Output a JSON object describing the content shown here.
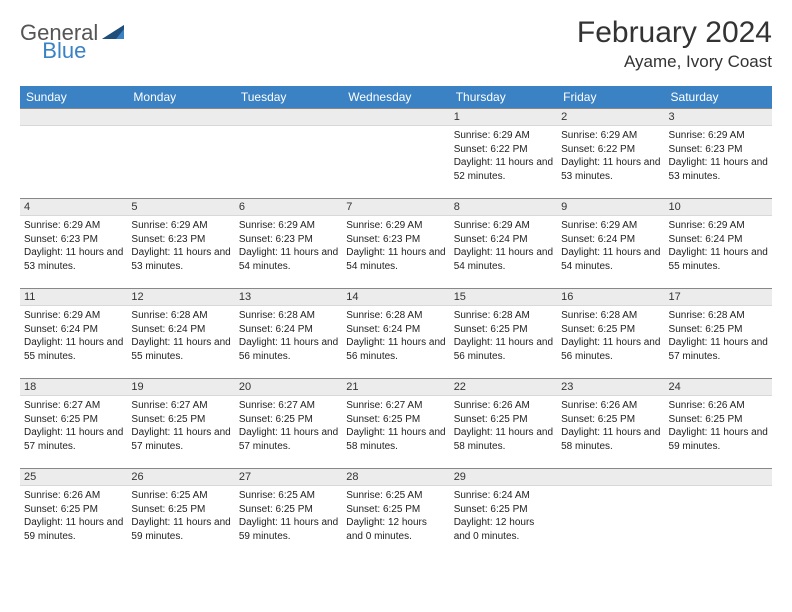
{
  "logo": {
    "general": "General",
    "blue": "Blue"
  },
  "header": {
    "month": "February 2024",
    "location": "Ayame, Ivory Coast"
  },
  "colors": {
    "header_bg": "#3b82c4",
    "header_text": "#ffffff",
    "daynum_bg": "#ececec",
    "daynum_border_top": "#888888",
    "text": "#333333"
  },
  "daynames": [
    "Sunday",
    "Monday",
    "Tuesday",
    "Wednesday",
    "Thursday",
    "Friday",
    "Saturday"
  ],
  "weeks": [
    [
      {
        "n": "",
        "sr": "",
        "ss": "",
        "dl": ""
      },
      {
        "n": "",
        "sr": "",
        "ss": "",
        "dl": ""
      },
      {
        "n": "",
        "sr": "",
        "ss": "",
        "dl": ""
      },
      {
        "n": "",
        "sr": "",
        "ss": "",
        "dl": ""
      },
      {
        "n": "1",
        "sr": "Sunrise: 6:29 AM",
        "ss": "Sunset: 6:22 PM",
        "dl": "Daylight: 11 hours and 52 minutes."
      },
      {
        "n": "2",
        "sr": "Sunrise: 6:29 AM",
        "ss": "Sunset: 6:22 PM",
        "dl": "Daylight: 11 hours and 53 minutes."
      },
      {
        "n": "3",
        "sr": "Sunrise: 6:29 AM",
        "ss": "Sunset: 6:23 PM",
        "dl": "Daylight: 11 hours and 53 minutes."
      }
    ],
    [
      {
        "n": "4",
        "sr": "Sunrise: 6:29 AM",
        "ss": "Sunset: 6:23 PM",
        "dl": "Daylight: 11 hours and 53 minutes."
      },
      {
        "n": "5",
        "sr": "Sunrise: 6:29 AM",
        "ss": "Sunset: 6:23 PM",
        "dl": "Daylight: 11 hours and 53 minutes."
      },
      {
        "n": "6",
        "sr": "Sunrise: 6:29 AM",
        "ss": "Sunset: 6:23 PM",
        "dl": "Daylight: 11 hours and 54 minutes."
      },
      {
        "n": "7",
        "sr": "Sunrise: 6:29 AM",
        "ss": "Sunset: 6:23 PM",
        "dl": "Daylight: 11 hours and 54 minutes."
      },
      {
        "n": "8",
        "sr": "Sunrise: 6:29 AM",
        "ss": "Sunset: 6:24 PM",
        "dl": "Daylight: 11 hours and 54 minutes."
      },
      {
        "n": "9",
        "sr": "Sunrise: 6:29 AM",
        "ss": "Sunset: 6:24 PM",
        "dl": "Daylight: 11 hours and 54 minutes."
      },
      {
        "n": "10",
        "sr": "Sunrise: 6:29 AM",
        "ss": "Sunset: 6:24 PM",
        "dl": "Daylight: 11 hours and 55 minutes."
      }
    ],
    [
      {
        "n": "11",
        "sr": "Sunrise: 6:29 AM",
        "ss": "Sunset: 6:24 PM",
        "dl": "Daylight: 11 hours and 55 minutes."
      },
      {
        "n": "12",
        "sr": "Sunrise: 6:28 AM",
        "ss": "Sunset: 6:24 PM",
        "dl": "Daylight: 11 hours and 55 minutes."
      },
      {
        "n": "13",
        "sr": "Sunrise: 6:28 AM",
        "ss": "Sunset: 6:24 PM",
        "dl": "Daylight: 11 hours and 56 minutes."
      },
      {
        "n": "14",
        "sr": "Sunrise: 6:28 AM",
        "ss": "Sunset: 6:24 PM",
        "dl": "Daylight: 11 hours and 56 minutes."
      },
      {
        "n": "15",
        "sr": "Sunrise: 6:28 AM",
        "ss": "Sunset: 6:25 PM",
        "dl": "Daylight: 11 hours and 56 minutes."
      },
      {
        "n": "16",
        "sr": "Sunrise: 6:28 AM",
        "ss": "Sunset: 6:25 PM",
        "dl": "Daylight: 11 hours and 56 minutes."
      },
      {
        "n": "17",
        "sr": "Sunrise: 6:28 AM",
        "ss": "Sunset: 6:25 PM",
        "dl": "Daylight: 11 hours and 57 minutes."
      }
    ],
    [
      {
        "n": "18",
        "sr": "Sunrise: 6:27 AM",
        "ss": "Sunset: 6:25 PM",
        "dl": "Daylight: 11 hours and 57 minutes."
      },
      {
        "n": "19",
        "sr": "Sunrise: 6:27 AM",
        "ss": "Sunset: 6:25 PM",
        "dl": "Daylight: 11 hours and 57 minutes."
      },
      {
        "n": "20",
        "sr": "Sunrise: 6:27 AM",
        "ss": "Sunset: 6:25 PM",
        "dl": "Daylight: 11 hours and 57 minutes."
      },
      {
        "n": "21",
        "sr": "Sunrise: 6:27 AM",
        "ss": "Sunset: 6:25 PM",
        "dl": "Daylight: 11 hours and 58 minutes."
      },
      {
        "n": "22",
        "sr": "Sunrise: 6:26 AM",
        "ss": "Sunset: 6:25 PM",
        "dl": "Daylight: 11 hours and 58 minutes."
      },
      {
        "n": "23",
        "sr": "Sunrise: 6:26 AM",
        "ss": "Sunset: 6:25 PM",
        "dl": "Daylight: 11 hours and 58 minutes."
      },
      {
        "n": "24",
        "sr": "Sunrise: 6:26 AM",
        "ss": "Sunset: 6:25 PM",
        "dl": "Daylight: 11 hours and 59 minutes."
      }
    ],
    [
      {
        "n": "25",
        "sr": "Sunrise: 6:26 AM",
        "ss": "Sunset: 6:25 PM",
        "dl": "Daylight: 11 hours and 59 minutes."
      },
      {
        "n": "26",
        "sr": "Sunrise: 6:25 AM",
        "ss": "Sunset: 6:25 PM",
        "dl": "Daylight: 11 hours and 59 minutes."
      },
      {
        "n": "27",
        "sr": "Sunrise: 6:25 AM",
        "ss": "Sunset: 6:25 PM",
        "dl": "Daylight: 11 hours and 59 minutes."
      },
      {
        "n": "28",
        "sr": "Sunrise: 6:25 AM",
        "ss": "Sunset: 6:25 PM",
        "dl": "Daylight: 12 hours and 0 minutes."
      },
      {
        "n": "29",
        "sr": "Sunrise: 6:24 AM",
        "ss": "Sunset: 6:25 PM",
        "dl": "Daylight: 12 hours and 0 minutes."
      },
      {
        "n": "",
        "sr": "",
        "ss": "",
        "dl": ""
      },
      {
        "n": "",
        "sr": "",
        "ss": "",
        "dl": ""
      }
    ]
  ]
}
